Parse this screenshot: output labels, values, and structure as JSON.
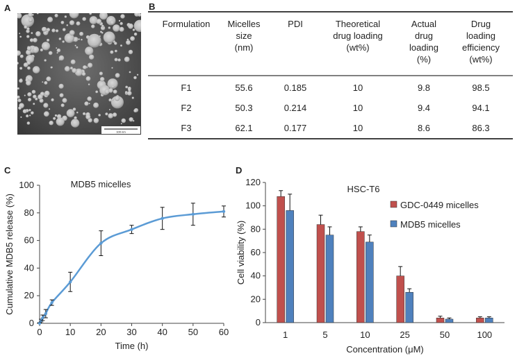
{
  "panels": {
    "a": "A",
    "b": "B",
    "c": "C",
    "d": "D"
  },
  "tem": {
    "scale_label": "100 nm"
  },
  "table": {
    "headers": [
      [
        "Formulation"
      ],
      [
        "Micelles",
        "size",
        "(nm)"
      ],
      [
        "PDI"
      ],
      [
        "Theoretical",
        "drug loading",
        "(wt%)"
      ],
      [
        "Actual",
        "drug",
        "loading",
        "(%)"
      ],
      [
        "Drug",
        "loading",
        "efficiency",
        "(wt%)"
      ]
    ],
    "rows": [
      [
        "F1",
        "55.6",
        "0.185",
        "10",
        "9.8",
        "98.5"
      ],
      [
        "F2",
        "50.3",
        "0.214",
        "10",
        "9.4",
        "94.1"
      ],
      [
        "F3",
        "62.1",
        "0.177",
        "10",
        "8.6",
        "86.3"
      ]
    ]
  },
  "chart_data": [
    {
      "type": "line",
      "panel": "C",
      "title": "MDB5 micelles",
      "xlabel": "Time (h)",
      "ylabel": "Cumulative  MDB5 release (%)",
      "xlim": [
        0,
        60
      ],
      "ylim": [
        0,
        100
      ],
      "xticks": [
        0,
        10,
        20,
        30,
        40,
        50,
        60
      ],
      "yticks": [
        0,
        20,
        40,
        60,
        80,
        100
      ],
      "color": "#5b9bd5",
      "series": [
        {
          "name": "MDB5 micelles",
          "x": [
            0,
            0.5,
            1,
            2,
            4,
            10,
            20,
            30,
            40,
            50,
            60
          ],
          "y": [
            0,
            2,
            4,
            7,
            15,
            30,
            58,
            68,
            76,
            79,
            81
          ],
          "err": [
            0.5,
            1,
            2,
            3,
            2,
            7,
            9,
            3,
            8,
            8,
            4
          ]
        }
      ]
    },
    {
      "type": "bar",
      "panel": "D",
      "title": "HSC-T6",
      "xlabel": "Concentration (μM)",
      "ylabel": "Cell viability  (%)",
      "ylim": [
        0,
        120
      ],
      "yticks": [
        0,
        20,
        40,
        60,
        80,
        100,
        120
      ],
      "categories": [
        "1",
        "5",
        "10",
        "25",
        "50",
        "100"
      ],
      "series": [
        {
          "name": "GDC-0449 micelles",
          "color": "#c0504d",
          "values": [
            108,
            84,
            78,
            40,
            4,
            4
          ],
          "err": [
            5,
            8,
            4,
            8,
            1.5,
            1
          ]
        },
        {
          "name": "MDB5 micelles",
          "color": "#4f81bd",
          "values": [
            96,
            75,
            69,
            26,
            3,
            4
          ],
          "err": [
            14,
            7,
            6,
            3,
            1,
            1
          ]
        }
      ]
    }
  ]
}
